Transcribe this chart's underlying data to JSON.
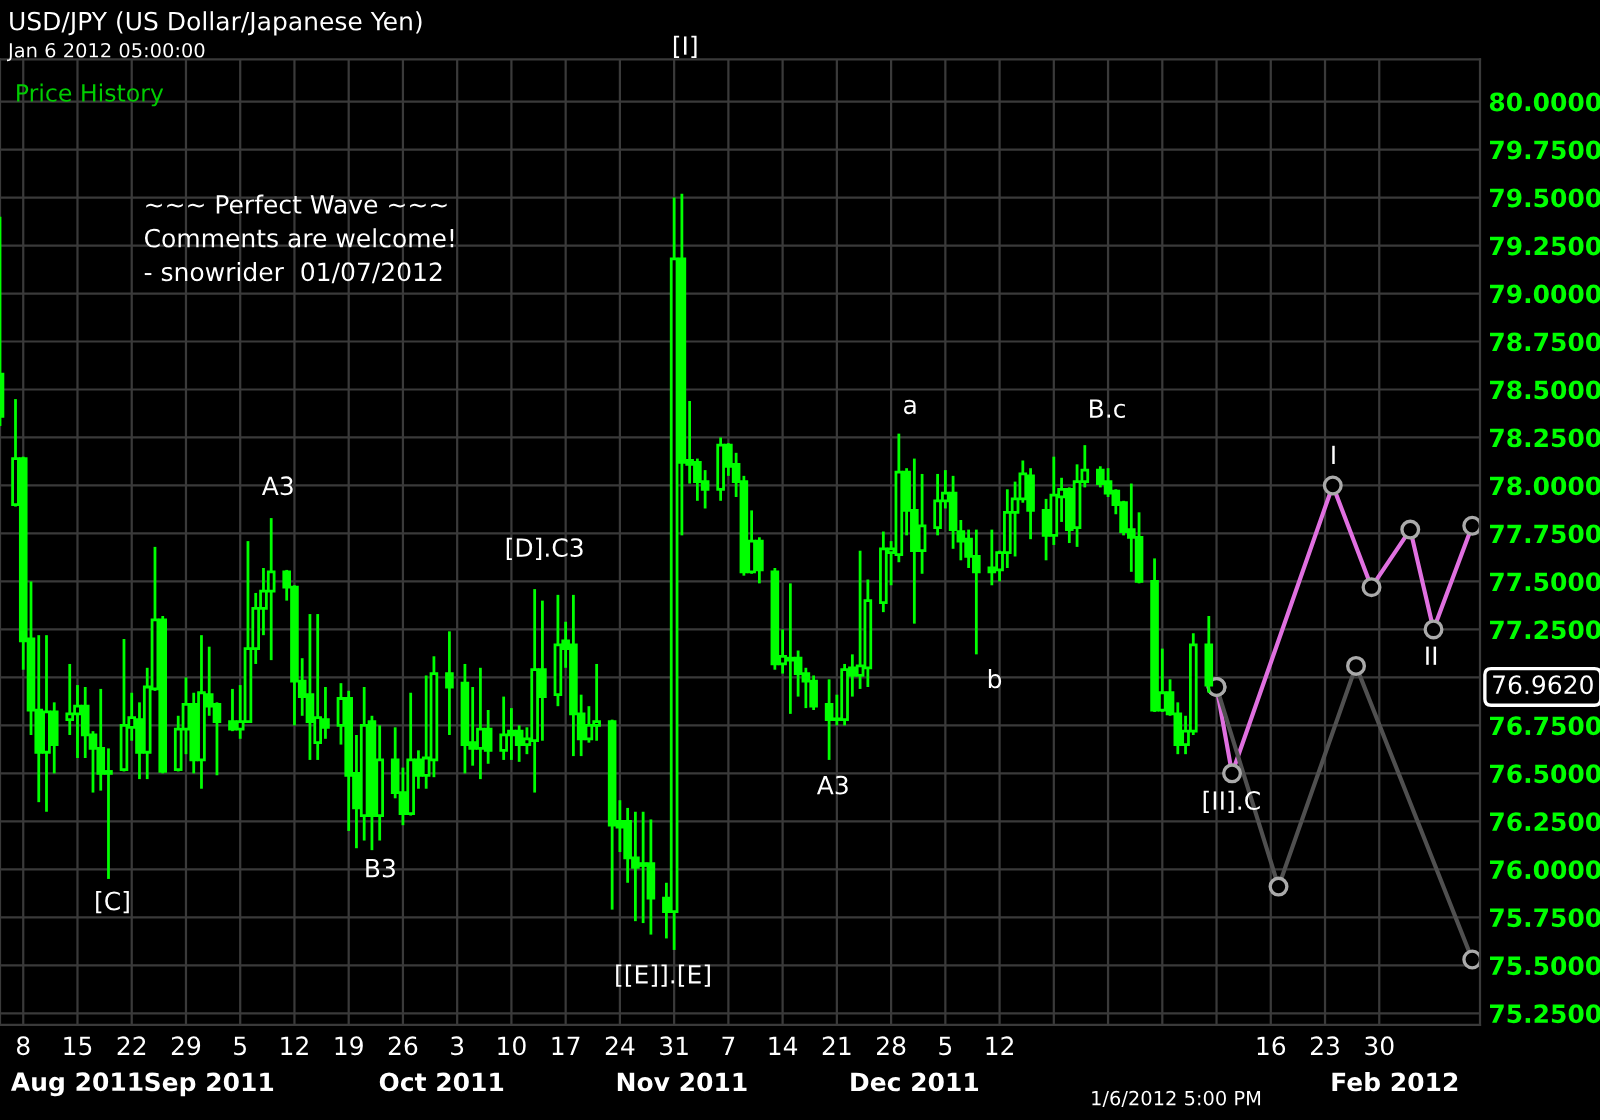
{
  "chart_data": {
    "type": "candlestick",
    "title": "USD/JPY (US Dollar/Japanese Yen)",
    "subtitle": "Jan 6 2012 05:00:00",
    "xlim": [
      "2011-08-05",
      "2012-02-12"
    ],
    "xticks": [
      {
        "value": "2011-08-08",
        "label": "8"
      },
      {
        "value": "2011-08-15",
        "label": "15"
      },
      {
        "value": "2011-08-22",
        "label": "22"
      },
      {
        "value": "2011-08-29",
        "label": "29"
      },
      {
        "value": "2011-09-05",
        "label": "5"
      },
      {
        "value": "2011-09-12",
        "label": "12"
      },
      {
        "value": "2011-09-19",
        "label": "19"
      },
      {
        "value": "2011-09-26",
        "label": "26"
      },
      {
        "value": "2011-10-03",
        "label": "3"
      },
      {
        "value": "2011-10-10",
        "label": "10"
      },
      {
        "value": "2011-10-17",
        "label": "17"
      },
      {
        "value": "2011-10-24",
        "label": "24"
      },
      {
        "value": "2011-10-31",
        "label": "31"
      },
      {
        "value": "2011-11-07",
        "label": "7"
      },
      {
        "value": "2011-11-14",
        "label": "14"
      },
      {
        "value": "2011-11-21",
        "label": "21"
      },
      {
        "value": "2011-11-28",
        "label": "28"
      },
      {
        "value": "2011-12-05",
        "label": "5"
      },
      {
        "value": "2011-12-12",
        "label": "12"
      },
      {
        "value": "2011-12-19",
        "label": null
      },
      {
        "value": "2011-12-26",
        "label": null
      },
      {
        "value": "2012-01-02",
        "label": null
      },
      {
        "value": "2012-01-09",
        "label": null
      },
      {
        "value": "2012-01-16",
        "label": "16"
      },
      {
        "value": "2012-01-23",
        "label": "23"
      },
      {
        "value": "2012-01-30",
        "label": "30"
      }
    ],
    "x2lim": [
      "2011-08-05",
      "2012-02-12"
    ],
    "x2ticks": [
      {
        "value": "2011-08-15",
        "label": "Aug 2011"
      },
      {
        "value": "2011-09-01",
        "label": "Sep 2011"
      },
      {
        "value": "2011-10-01",
        "label": "Oct 2011"
      },
      {
        "value": "2011-11-01",
        "label": "Nov 2011"
      },
      {
        "value": "2011-12-01",
        "label": "Dec 2011"
      },
      {
        "value": "2012-02-01",
        "label": "Feb 2012"
      }
    ],
    "ylim": [
      75.19,
      80.22
    ],
    "yticks": [
      {
        "value": 75.25,
        "label": "75.2500"
      },
      {
        "value": 75.5,
        "label": "75.5000"
      },
      {
        "value": 75.75,
        "label": "75.7500"
      },
      {
        "value": 76.0,
        "label": "76.0000"
      },
      {
        "value": 76.25,
        "label": "76.2500"
      },
      {
        "value": 76.5,
        "label": "76.5000"
      },
      {
        "value": 76.75,
        "label": "76.7500"
      },
      {
        "value": 77.0,
        "label": null
      },
      {
        "value": 77.25,
        "label": "77.2500"
      },
      {
        "value": 77.5,
        "label": "77.5000"
      },
      {
        "value": 77.75,
        "label": "77.7500"
      },
      {
        "value": 78.0,
        "label": "78.0000"
      },
      {
        "value": 78.25,
        "label": "78.2500"
      },
      {
        "value": 78.5,
        "label": "78.5000"
      },
      {
        "value": 78.75,
        "label": "78.7500"
      },
      {
        "value": 79.0,
        "label": "79.0000"
      },
      {
        "value": 79.25,
        "label": "79.2500"
      },
      {
        "value": 79.5,
        "label": "79.5000"
      },
      {
        "value": 79.75,
        "label": "79.7500"
      },
      {
        "value": 80.0,
        "label": "80.0000"
      }
    ],
    "grid": true,
    "series": [
      {
        "type": "candlestick",
        "color": "#00ff00",
        "x": [
          "2011-08-05",
          "2011-08-07",
          "2011-08-08",
          "2011-08-09",
          "2011-08-10",
          "2011-08-11",
          "2011-08-12",
          "2011-08-14",
          "2011-08-15",
          "2011-08-16",
          "2011-08-17",
          "2011-08-18",
          "2011-08-19",
          "2011-08-21",
          "2011-08-22",
          "2011-08-23",
          "2011-08-24",
          "2011-08-25",
          "2011-08-26",
          "2011-08-28",
          "2011-08-29",
          "2011-08-30",
          "2011-08-31",
          "2011-09-01",
          "2011-09-02",
          "2011-09-04",
          "2011-09-05",
          "2011-09-06",
          "2011-09-07",
          "2011-09-08",
          "2011-09-09",
          "2011-09-11",
          "2011-09-12",
          "2011-09-13",
          "2011-09-14",
          "2011-09-15",
          "2011-09-16",
          "2011-09-18",
          "2011-09-19",
          "2011-09-20",
          "2011-09-21",
          "2011-09-22",
          "2011-09-23",
          "2011-09-25",
          "2011-09-26",
          "2011-09-27",
          "2011-09-28",
          "2011-09-29",
          "2011-09-30",
          "2011-10-02",
          "2011-10-04",
          "2011-10-05",
          "2011-10-06",
          "2011-10-07",
          "2011-10-09",
          "2011-10-10",
          "2011-10-11",
          "2011-10-12",
          "2011-10-13",
          "2011-10-14",
          "2011-10-16",
          "2011-10-17",
          "2011-10-18",
          "2011-10-19",
          "2011-10-20",
          "2011-10-21",
          "2011-10-23",
          "2011-10-24",
          "2011-10-25",
          "2011-10-26",
          "2011-10-27",
          "2011-10-28",
          "2011-10-30",
          "2011-10-31",
          "2011-11-01",
          "2011-11-02",
          "2011-11-03",
          "2011-11-04",
          "2011-11-06",
          "2011-11-07",
          "2011-11-08",
          "2011-11-09",
          "2011-11-10",
          "2011-11-11",
          "2011-11-13",
          "2011-11-14",
          "2011-11-15",
          "2011-11-16",
          "2011-11-17",
          "2011-11-18",
          "2011-11-20",
          "2011-11-21",
          "2011-11-22",
          "2011-11-23",
          "2011-11-24",
          "2011-11-25",
          "2011-11-27",
          "2011-11-28",
          "2011-11-29",
          "2011-11-30",
          "2011-12-01",
          "2011-12-02",
          "2011-12-04",
          "2011-12-05",
          "2011-12-06",
          "2011-12-07",
          "2011-12-08",
          "2011-12-09",
          "2011-12-11",
          "2011-12-12",
          "2011-12-13",
          "2011-12-14",
          "2011-12-15",
          "2011-12-16",
          "2011-12-18",
          "2011-12-19",
          "2011-12-20",
          "2011-12-21",
          "2011-12-22",
          "2011-12-23",
          "2011-12-25",
          "2011-12-26",
          "2011-12-27",
          "2011-12-28",
          "2011-12-29",
          "2011-12-30",
          "2012-01-01",
          "2012-01-02",
          "2012-01-03",
          "2012-01-04",
          "2012-01-05",
          "2012-01-06",
          "2012-01-08"
        ],
        "ohlc": [
          [
            78.58,
            79.4,
            78.31,
            78.36
          ],
          [
            77.9,
            78.45,
            77.89,
            78.14
          ],
          [
            78.14,
            78.15,
            77.04,
            77.19
          ],
          [
            77.2,
            77.5,
            76.7,
            76.83
          ],
          [
            76.83,
            77.22,
            76.35,
            76.61
          ],
          [
            76.61,
            77.22,
            76.3,
            76.82
          ],
          [
            76.82,
            76.87,
            76.5,
            76.65
          ],
          [
            76.78,
            77.07,
            76.7,
            76.81
          ],
          [
            76.81,
            76.96,
            76.58,
            76.85
          ],
          [
            76.85,
            76.95,
            76.58,
            76.7
          ],
          [
            76.7,
            76.72,
            76.4,
            76.63
          ],
          [
            76.63,
            76.94,
            76.41,
            76.5
          ],
          [
            76.51,
            76.63,
            75.95,
            76.5
          ],
          [
            76.52,
            77.2,
            76.51,
            76.75
          ],
          [
            76.74,
            76.92,
            76.67,
            76.79
          ],
          [
            76.78,
            76.87,
            76.47,
            76.61
          ],
          [
            76.61,
            77.05,
            76.47,
            76.95
          ],
          [
            76.94,
            77.68,
            76.93,
            77.3
          ],
          [
            77.3,
            77.32,
            76.5,
            76.51
          ],
          [
            76.52,
            76.8,
            76.51,
            76.73
          ],
          [
            76.73,
            77.0,
            76.6,
            76.86
          ],
          [
            76.86,
            76.92,
            76.5,
            76.57
          ],
          [
            76.57,
            77.22,
            76.42,
            76.92
          ],
          [
            76.91,
            77.16,
            76.8,
            76.85
          ],
          [
            76.86,
            76.87,
            76.49,
            76.77
          ],
          [
            76.77,
            76.94,
            76.72,
            76.73
          ],
          [
            76.73,
            76.96,
            76.68,
            76.77
          ],
          [
            76.77,
            77.71,
            76.77,
            77.15
          ],
          [
            77.15,
            77.44,
            77.07,
            77.36
          ],
          [
            77.36,
            77.57,
            77.22,
            77.45
          ],
          [
            77.45,
            77.83,
            77.09,
            77.55
          ],
          [
            77.55,
            77.56,
            77.4,
            77.47
          ],
          [
            77.47,
            77.48,
            76.75,
            76.98
          ],
          [
            76.98,
            77.1,
            76.8,
            76.9
          ],
          [
            76.91,
            77.33,
            76.57,
            76.77
          ],
          [
            76.66,
            77.33,
            76.57,
            76.79
          ],
          [
            76.78,
            76.95,
            76.68,
            76.74
          ],
          [
            76.75,
            76.97,
            76.65,
            76.89
          ],
          [
            76.89,
            76.93,
            76.2,
            76.49
          ],
          [
            76.5,
            76.7,
            76.11,
            76.32
          ],
          [
            76.28,
            76.95,
            76.15,
            76.75
          ],
          [
            76.77,
            76.8,
            76.1,
            76.28
          ],
          [
            76.28,
            76.75,
            76.15,
            76.57
          ],
          [
            76.57,
            76.74,
            76.37,
            76.4
          ],
          [
            76.4,
            76.53,
            76.23,
            76.29
          ],
          [
            76.29,
            76.92,
            76.28,
            76.57
          ],
          [
            76.57,
            76.62,
            76.42,
            76.49
          ],
          [
            76.49,
            77.01,
            76.42,
            76.58
          ],
          [
            76.57,
            77.11,
            76.48,
            77.02
          ],
          [
            77.02,
            77.24,
            76.7,
            76.95
          ],
          [
            76.97,
            77.07,
            76.5,
            76.65
          ],
          [
            76.66,
            76.95,
            76.54,
            76.63
          ],
          [
            76.63,
            77.05,
            76.47,
            76.73
          ],
          [
            76.73,
            76.83,
            76.55,
            76.62
          ],
          [
            76.62,
            76.9,
            76.57,
            76.7
          ],
          [
            76.72,
            76.84,
            76.57,
            76.7
          ],
          [
            76.72,
            76.75,
            76.56,
            76.65
          ],
          [
            76.65,
            76.74,
            76.6,
            76.68
          ],
          [
            76.67,
            77.46,
            76.4,
            77.04
          ],
          [
            77.04,
            77.4,
            76.67,
            76.9
          ],
          [
            76.91,
            77.43,
            76.85,
            77.17
          ],
          [
            77.19,
            77.29,
            77.05,
            77.15
          ],
          [
            77.17,
            77.43,
            76.59,
            76.81
          ],
          [
            76.81,
            76.91,
            76.59,
            76.68
          ],
          [
            76.68,
            76.85,
            76.66,
            76.75
          ],
          [
            76.75,
            77.07,
            76.67,
            76.77
          ],
          [
            76.77,
            76.78,
            75.79,
            76.23
          ],
          [
            76.25,
            76.36,
            76.09,
            76.22
          ],
          [
            76.25,
            76.32,
            75.93,
            76.06
          ],
          [
            76.06,
            76.3,
            75.73,
            76.01
          ],
          [
            76.03,
            76.3,
            75.72,
            76.02
          ],
          [
            76.03,
            76.26,
            75.66,
            75.85
          ],
          [
            75.85,
            75.93,
            75.64,
            75.78
          ],
          [
            75.78,
            79.5,
            75.58,
            79.18
          ],
          [
            79.18,
            79.52,
            77.74,
            78.12
          ],
          [
            78.13,
            78.44,
            78.01,
            78.11
          ],
          [
            78.12,
            78.14,
            77.92,
            78.02
          ],
          [
            78.02,
            78.08,
            77.88,
            77.98
          ],
          [
            77.98,
            78.25,
            77.92,
            78.21
          ],
          [
            78.21,
            78.22,
            78.05,
            78.1
          ],
          [
            78.11,
            78.17,
            77.94,
            78.02
          ],
          [
            78.02,
            78.05,
            77.53,
            77.55
          ],
          [
            77.55,
            77.87,
            77.54,
            77.71
          ],
          [
            77.71,
            77.73,
            77.49,
            77.56
          ],
          [
            77.55,
            77.57,
            77.04,
            77.07
          ],
          [
            77.07,
            77.25,
            77.02,
            77.11
          ],
          [
            77.1,
            77.49,
            76.81,
            77.09
          ],
          [
            77.1,
            77.14,
            76.9,
            77.02
          ],
          [
            77.02,
            77.05,
            76.84,
            76.98
          ],
          [
            76.98,
            77.01,
            76.83,
            76.85
          ],
          [
            76.86,
            76.99,
            76.57,
            76.78
          ],
          [
            76.78,
            76.91,
            76.75,
            76.78
          ],
          [
            76.78,
            77.07,
            76.75,
            77.04
          ],
          [
            77.05,
            77.12,
            76.9,
            77.01
          ],
          [
            77.01,
            77.66,
            76.94,
            77.06
          ],
          [
            77.05,
            77.51,
            76.95,
            77.4
          ],
          [
            77.39,
            77.76,
            77.34,
            77.67
          ],
          [
            77.65,
            77.71,
            77.48,
            77.67
          ],
          [
            77.64,
            78.27,
            77.6,
            78.07
          ],
          [
            78.07,
            78.09,
            77.74,
            77.87
          ],
          [
            77.87,
            78.14,
            77.28,
            77.66
          ],
          [
            77.66,
            78.06,
            77.54,
            77.79
          ],
          [
            77.78,
            78.06,
            77.74,
            77.92
          ],
          [
            77.92,
            78.08,
            77.88,
            77.96
          ],
          [
            77.96,
            78.05,
            77.67,
            77.77
          ],
          [
            77.76,
            77.82,
            77.61,
            77.71
          ],
          [
            77.72,
            77.77,
            77.57,
            77.63
          ],
          [
            77.63,
            77.77,
            77.12,
            77.55
          ],
          [
            77.57,
            77.77,
            77.48,
            77.55
          ],
          [
            77.56,
            77.66,
            77.5,
            77.65
          ],
          [
            77.65,
            77.98,
            77.57,
            77.86
          ],
          [
            77.86,
            78.02,
            77.63,
            77.93
          ],
          [
            77.93,
            78.13,
            77.91,
            78.06
          ],
          [
            78.05,
            78.09,
            77.72,
            77.87
          ],
          [
            77.87,
            77.93,
            77.61,
            77.74
          ],
          [
            77.74,
            78.15,
            77.69,
            77.95
          ],
          [
            77.94,
            78.04,
            77.81,
            77.98
          ],
          [
            77.98,
            77.99,
            77.7,
            77.77
          ],
          [
            77.78,
            78.11,
            77.68,
            78.02
          ],
          [
            78.02,
            78.21,
            77.99,
            78.08
          ],
          [
            78.08,
            78.1,
            77.99,
            78.01
          ],
          [
            78.02,
            78.09,
            77.94,
            77.96
          ],
          [
            77.97,
            77.98,
            77.85,
            77.9
          ],
          [
            77.91,
            77.92,
            77.74,
            77.76
          ],
          [
            77.77,
            78.01,
            77.55,
            77.73
          ],
          [
            77.73,
            77.86,
            77.49,
            77.5
          ],
          [
            77.5,
            77.62,
            76.82,
            76.83
          ],
          [
            76.83,
            77.15,
            76.82,
            76.92
          ],
          [
            76.92,
            76.99,
            76.8,
            76.81
          ],
          [
            76.81,
            76.87,
            76.6,
            76.65
          ],
          [
            76.65,
            76.8,
            76.6,
            76.72
          ],
          [
            76.72,
            77.23,
            76.7,
            77.17
          ],
          [
            77.17,
            77.32,
            76.92,
            76.96
          ]
        ]
      },
      {
        "type": "line",
        "color": "#e070e0",
        "marker": "circle",
        "x": [
          "2012-01-09",
          "2012-01-11",
          "2012-01-24",
          "2012-01-29",
          "2012-02-03",
          "2012-02-06",
          "2012-02-11"
        ],
        "values": [
          76.95,
          76.5,
          78.0,
          77.47,
          77.77,
          77.25,
          77.79
        ]
      },
      {
        "type": "line",
        "color": "#505050",
        "marker": "circle",
        "x": [
          "2012-01-09",
          "2012-01-17",
          "2012-01-27",
          "2012-02-11"
        ],
        "values": [
          76.95,
          75.91,
          77.06,
          75.53
        ]
      }
    ],
    "annotations": [
      "Price History",
      "~~~ Perfect Wave ~~~\nComments are welcome!\n- snowrider  01/07/2012",
      "1/6/2012 5:00 PM",
      "76.9620",
      "[C]",
      "A3",
      "B3",
      "[D].C3",
      "[I]",
      "[[E]].[E]",
      "A3",
      "a",
      "b",
      "B.c",
      "[II].C",
      "I",
      "II"
    ]
  }
}
